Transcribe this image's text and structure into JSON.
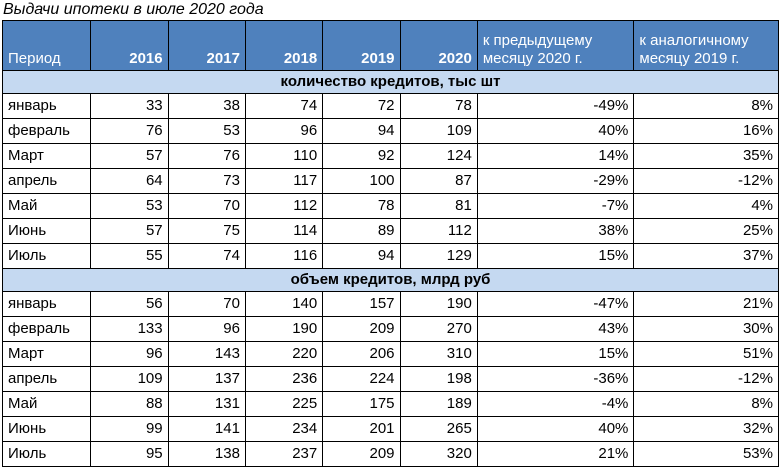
{
  "title": "Выдачи ипотеки в июле 2020 года",
  "headers": {
    "period": "Период",
    "years": [
      "2016",
      "2017",
      "2018",
      "2019",
      "2020"
    ],
    "prev_month": "к предыдущему месяцу 2020 г.",
    "same_month": "к аналогичному месяцу 2019 г."
  },
  "sections": [
    {
      "title": "количество кредитов, тыс шт",
      "rows": [
        {
          "month": "январь",
          "v2016": "33",
          "v2017": "38",
          "v2018": "74",
          "v2019": "72",
          "v2020": "78",
          "prev": "-49%",
          "yoy": "8%"
        },
        {
          "month": "февраль",
          "v2016": "76",
          "v2017": "53",
          "v2018": "96",
          "v2019": "94",
          "v2020": "109",
          "prev": "40%",
          "yoy": "16%"
        },
        {
          "month": "Март",
          "v2016": "57",
          "v2017": "76",
          "v2018": "110",
          "v2019": "92",
          "v2020": "124",
          "prev": "14%",
          "yoy": "35%"
        },
        {
          "month": "апрель",
          "v2016": "64",
          "v2017": "73",
          "v2018": "117",
          "v2019": "100",
          "v2020": "87",
          "prev": "-29%",
          "yoy": "-12%"
        },
        {
          "month": "Май",
          "v2016": "53",
          "v2017": "70",
          "v2018": "112",
          "v2019": "78",
          "v2020": "81",
          "prev": "-7%",
          "yoy": "4%"
        },
        {
          "month": "Июнь",
          "v2016": "57",
          "v2017": "75",
          "v2018": "114",
          "v2019": "89",
          "v2020": "112",
          "prev": "38%",
          "yoy": "25%"
        },
        {
          "month": "Июль",
          "v2016": "55",
          "v2017": "74",
          "v2018": "116",
          "v2019": "94",
          "v2020": "129",
          "prev": "15%",
          "yoy": "37%"
        }
      ]
    },
    {
      "title": "объем кредитов, млрд руб",
      "rows": [
        {
          "month": "январь",
          "v2016": "56",
          "v2017": "70",
          "v2018": "140",
          "v2019": "157",
          "v2020": "190",
          "prev": "-47%",
          "yoy": "21%"
        },
        {
          "month": "февраль",
          "v2016": "133",
          "v2017": "96",
          "v2018": "190",
          "v2019": "209",
          "v2020": "270",
          "prev": "43%",
          "yoy": "30%"
        },
        {
          "month": "Март",
          "v2016": "96",
          "v2017": "143",
          "v2018": "220",
          "v2019": "206",
          "v2020": "310",
          "prev": "15%",
          "yoy": "51%"
        },
        {
          "month": "апрель",
          "v2016": "109",
          "v2017": "137",
          "v2018": "236",
          "v2019": "224",
          "v2020": "198",
          "prev": "-36%",
          "yoy": "-12%"
        },
        {
          "month": "Май",
          "v2016": "88",
          "v2017": "131",
          "v2018": "225",
          "v2019": "175",
          "v2020": "189",
          "prev": "-4%",
          "yoy": "8%"
        },
        {
          "month": "Июнь",
          "v2016": "99",
          "v2017": "141",
          "v2018": "234",
          "v2019": "201",
          "v2020": "265",
          "prev": "40%",
          "yoy": "32%"
        },
        {
          "month": "Июль",
          "v2016": "95",
          "v2017": "138",
          "v2018": "237",
          "v2019": "209",
          "v2020": "320",
          "prev": "21%",
          "yoy": "53%"
        }
      ]
    }
  ]
}
